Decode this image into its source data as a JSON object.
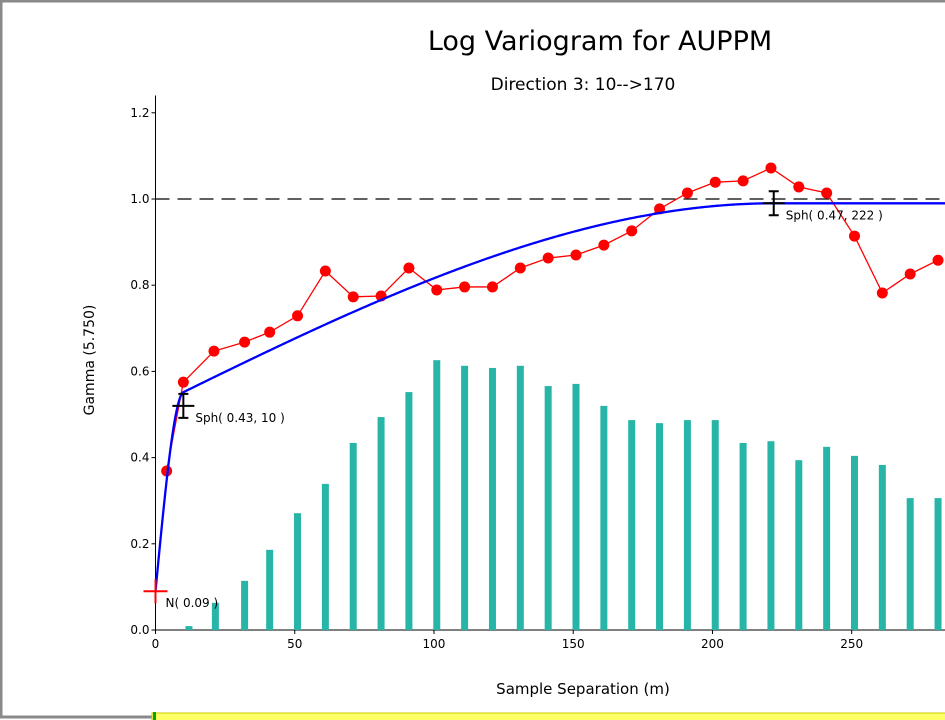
{
  "chart_data": {
    "type": "line",
    "title": "Log  Variogram for AUPPM",
    "subtitle": "Direction 3: 10-->170",
    "x_label": "Sample Separation (m)",
    "y_label": "Gamma (5.750)",
    "xlim": [
      0,
      283.5
    ],
    "ylim": [
      0,
      1.24
    ],
    "xticks": [
      0,
      50,
      100,
      150,
      200,
      250
    ],
    "yticks": [
      {
        "value": 0,
        "label": "0.0"
      },
      0.2,
      0.4,
      0.6,
      0.8,
      {
        "value": 1,
        "label": "1.0"
      },
      1.2
    ],
    "sill_line": 1,
    "experimental": {
      "color": "#ff0000",
      "x": [
        4,
        10,
        21,
        32,
        41,
        51,
        61,
        71,
        81,
        91,
        101,
        111,
        121,
        131,
        141,
        151,
        161,
        171,
        181,
        191,
        201,
        211,
        221,
        231,
        241,
        251,
        261,
        271,
        281
      ],
      "values": [
        0.369,
        0.575,
        0.647,
        0.668,
        0.691,
        0.729,
        0.833,
        0.773,
        0.775,
        0.84,
        0.789,
        0.796,
        0.796,
        0.84,
        0.863,
        0.87,
        0.893,
        0.926,
        0.977,
        1.014,
        1.039,
        1.042,
        1.072,
        1.028,
        1.014,
        0.914,
        0.782,
        0.826,
        0.858
      ]
    },
    "pairs": {
      "color": "#26b5a6",
      "x": [
        12,
        21.5,
        32,
        41,
        51,
        61,
        71,
        81,
        91,
        101,
        111,
        121,
        131,
        141,
        151,
        161,
        171,
        181,
        191,
        201,
        211,
        221,
        231,
        241,
        251,
        261,
        271,
        281
      ],
      "values": [
        0.009,
        0.063,
        0.114,
        0.186,
        0.271,
        0.339,
        0.434,
        0.494,
        0.552,
        0.626,
        0.613,
        0.608,
        0.613,
        0.566,
        0.571,
        0.52,
        0.487,
        0.48,
        0.487,
        0.487,
        0.434,
        0.438,
        0.394,
        0.425,
        0.404,
        0.383,
        0.306,
        0.306
      ]
    },
    "model": {
      "color": "#0000ff",
      "nugget": 0.09,
      "nugget_label": "N( 0.09 )",
      "structures": [
        {
          "sill": 0.43,
          "range": 10,
          "label": "Sph( 0.43, 10 )"
        },
        {
          "sill": 0.47,
          "range": 222,
          "label": "Sph( 0.47, 222 )"
        }
      ]
    }
  }
}
